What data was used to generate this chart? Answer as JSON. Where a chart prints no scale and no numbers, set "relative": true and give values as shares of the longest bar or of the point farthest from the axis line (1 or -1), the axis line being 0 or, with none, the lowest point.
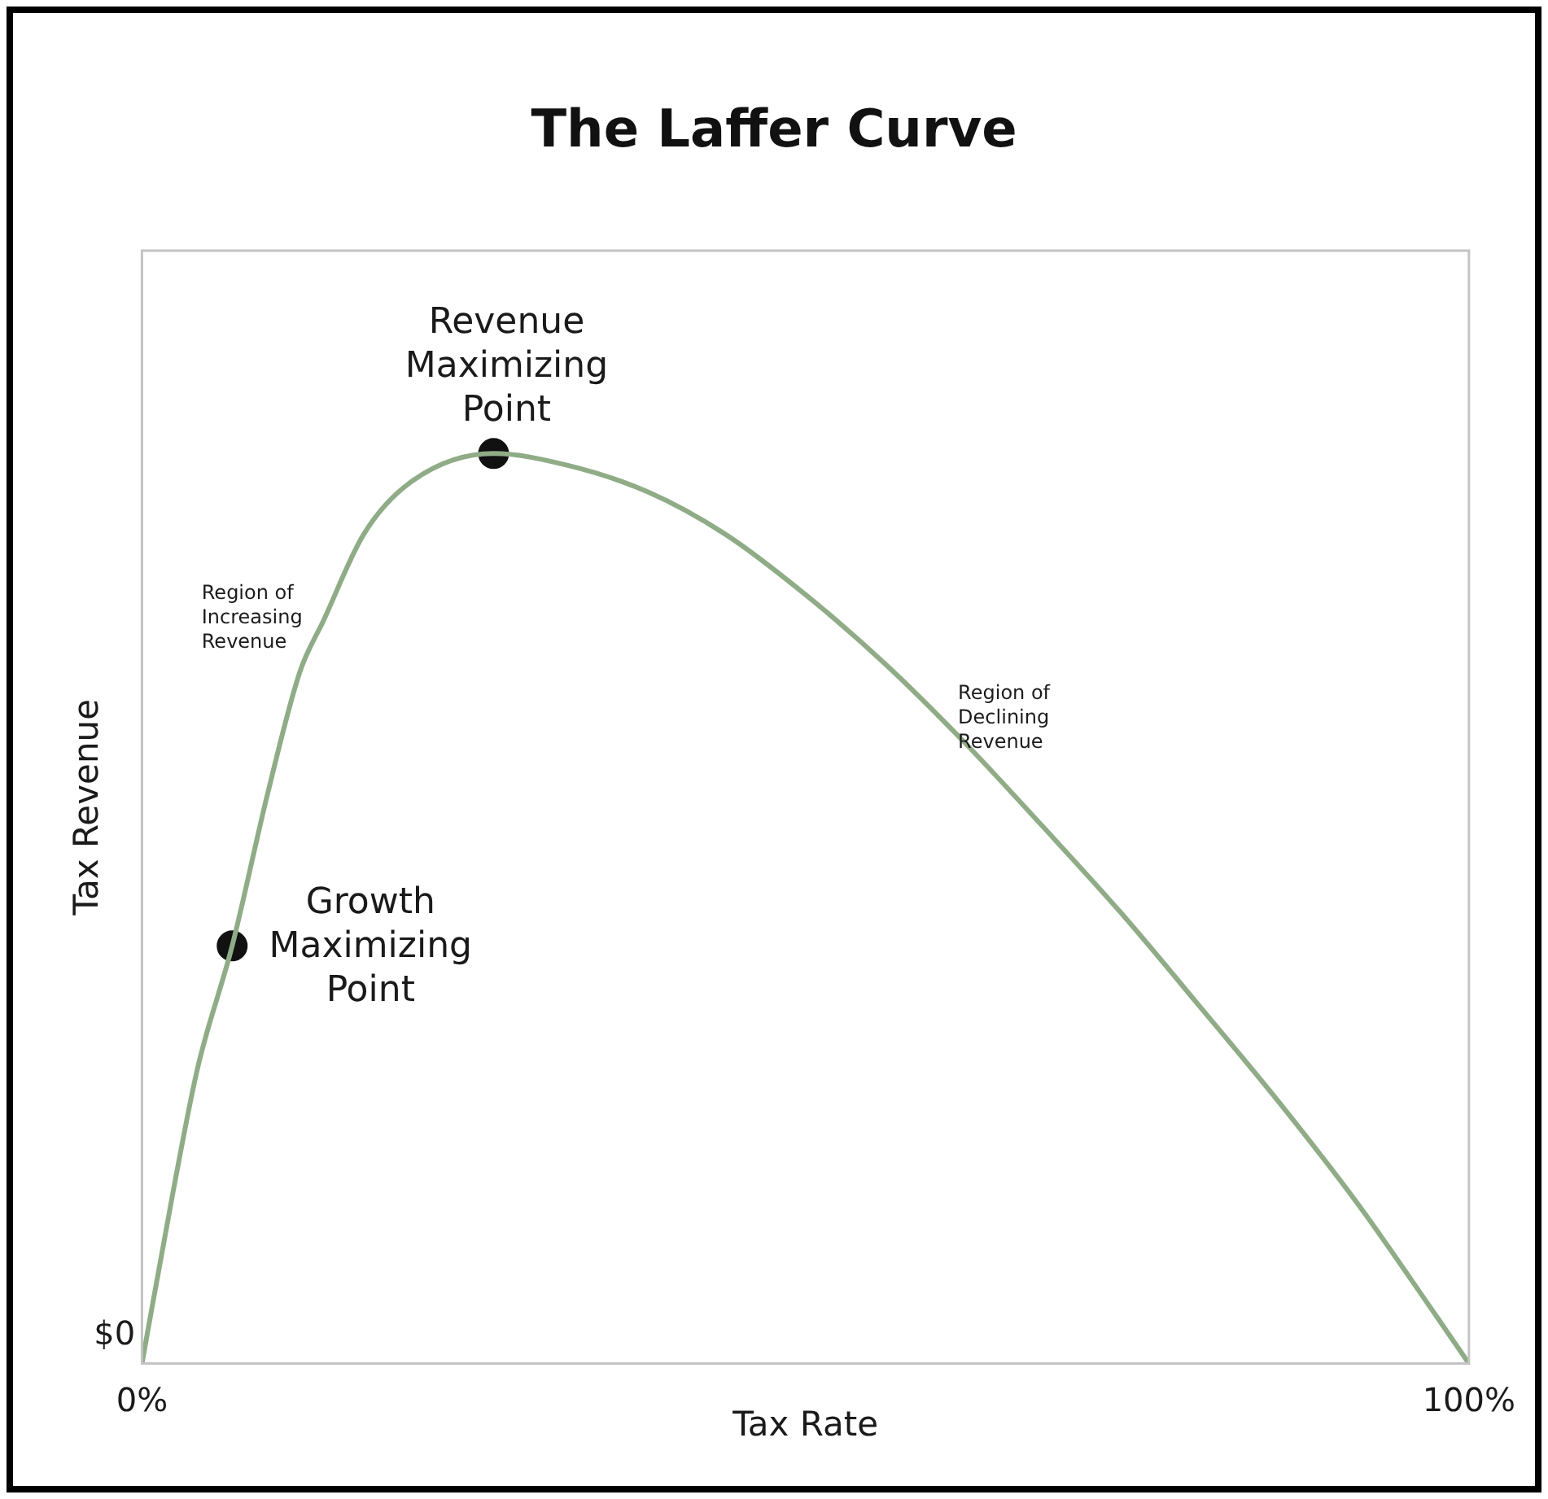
{
  "chart_data": {
    "type": "line",
    "title": "The Laffer Curve",
    "xlabel": "Tax Rate",
    "ylabel": "Tax Revenue",
    "relative": true,
    "xlim": [
      0,
      100
    ],
    "xticks": [
      {
        "value": 0,
        "label": "0%"
      },
      {
        "value": 100,
        "label": "100%"
      }
    ],
    "grid": false,
    "legend": false,
    "series": [
      {
        "color": "#8fac87",
        "marker": "none",
        "x": [
          0,
          2.4,
          4.2,
          6.8,
          9.5,
          11.9,
          13.7,
          16.7,
          20.2,
          26.5,
          32.1,
          38.1,
          44.0,
          50.0,
          56.0,
          61.9,
          67.9,
          73.8,
          79.8,
          85.7,
          91.7,
          97.6,
          100
        ],
        "values": [
          0,
          0.193,
          0.325,
          0.459,
          0.628,
          0.76,
          0.817,
          0.911,
          0.968,
          1,
          0.987,
          0.958,
          0.911,
          0.845,
          0.769,
          0.684,
          0.59,
          0.495,
          0.391,
          0.287,
          0.174,
          0.051,
          0
        ]
      },
      {
        "type": "scatter",
        "color": "#111111",
        "marker": "circle",
        "x": [
          6.8,
          26.5
        ],
        "values": [
          0.459,
          1
        ]
      }
    ],
    "annotations": [
      "$0",
      {
        "text": "Revenue\nMaximizing\nPoint",
        "x": 26.5,
        "y": 1
      },
      {
        "text": "Growth\nMaximizing\nPoint",
        "x": 6.8,
        "y": 0.459
      },
      "Region of\nIncreasing\nRevenue",
      "Region of\nDeclining\nRevenue"
    ]
  }
}
